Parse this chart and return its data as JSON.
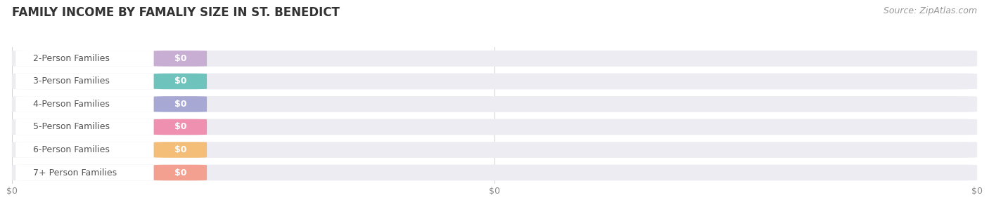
{
  "title": "FAMILY INCOME BY FAMALIY SIZE IN ST. BENEDICT",
  "source": "Source: ZipAtlas.com",
  "categories": [
    "2-Person Families",
    "3-Person Families",
    "4-Person Families",
    "5-Person Families",
    "6-Person Families",
    "7+ Person Families"
  ],
  "values": [
    0,
    0,
    0,
    0,
    0,
    0
  ],
  "bar_colors": [
    "#c9aed4",
    "#6ec4bc",
    "#a8a8d4",
    "#f090b0",
    "#f5be78",
    "#f4a090"
  ],
  "bar_bg_color": "#ebebf0",
  "bar_bg_color2": "#f5f5f8",
  "white_pill_color": "#ffffff",
  "background_color": "#ffffff",
  "title_fontsize": 12,
  "source_fontsize": 9,
  "label_fontsize": 9,
  "value_fontsize": 9,
  "value_label": "$0",
  "tick_labels": [
    "$0",
    "$0",
    "$0"
  ],
  "label_text_color": "#555555",
  "value_text_color": "#ffffff"
}
